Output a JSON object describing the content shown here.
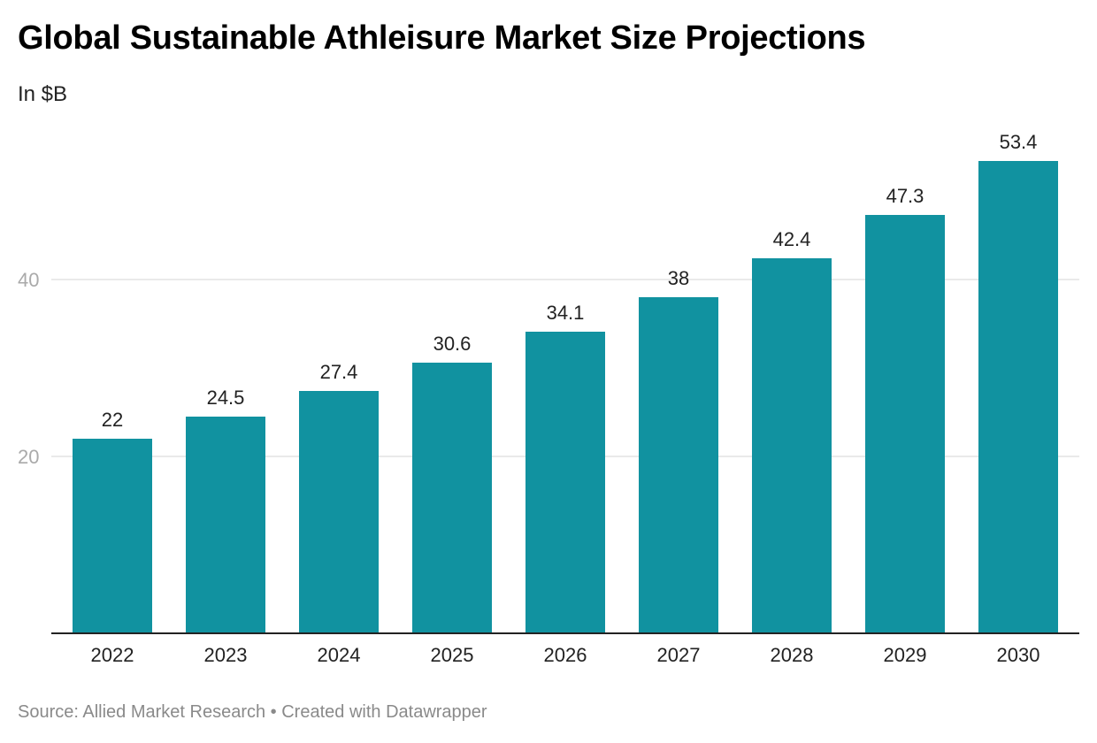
{
  "header": {
    "title": "Global Sustainable Athleisure Market Size Projections",
    "subtitle": "In $B"
  },
  "footer": {
    "source": "Source: Allied Market Research • Created with Datawrapper"
  },
  "colors": {
    "bar": "#1192a0",
    "gridline": "#e3e3e3",
    "baseline": "#222222"
  },
  "chart_data": {
    "type": "bar",
    "title": "Global Sustainable Athleisure Market Size Projections",
    "subtitle": "In $B",
    "xlabel": "",
    "ylabel": "",
    "categories": [
      "2022",
      "2023",
      "2024",
      "2025",
      "2026",
      "2027",
      "2028",
      "2029",
      "2030"
    ],
    "values": [
      22,
      24.5,
      27.4,
      30.6,
      34.1,
      38,
      42.4,
      47.3,
      53.4
    ],
    "value_labels": [
      "22",
      "24.5",
      "27.4",
      "30.6",
      "34.1",
      "38",
      "42.4",
      "47.3",
      "53.4"
    ],
    "ylim": [
      0,
      53.4
    ],
    "yticks": [
      20,
      40
    ],
    "ytick_labels": [
      "20",
      "40"
    ],
    "grid": true,
    "legend": "none"
  }
}
